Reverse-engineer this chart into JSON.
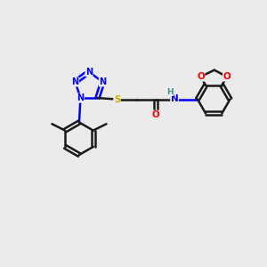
{
  "background_color": "#ebebeb",
  "atom_colors": {
    "N": "#0000ff",
    "O": "#ff0000",
    "S": "#ccaa00",
    "C": "#000000",
    "H": "#4a9090"
  },
  "bond_color": "#1a1a1a",
  "bond_width": 1.8,
  "figsize": [
    3.0,
    3.0
  ],
  "dpi": 100,
  "xlim": [
    0,
    10
  ],
  "ylim": [
    0,
    10
  ]
}
